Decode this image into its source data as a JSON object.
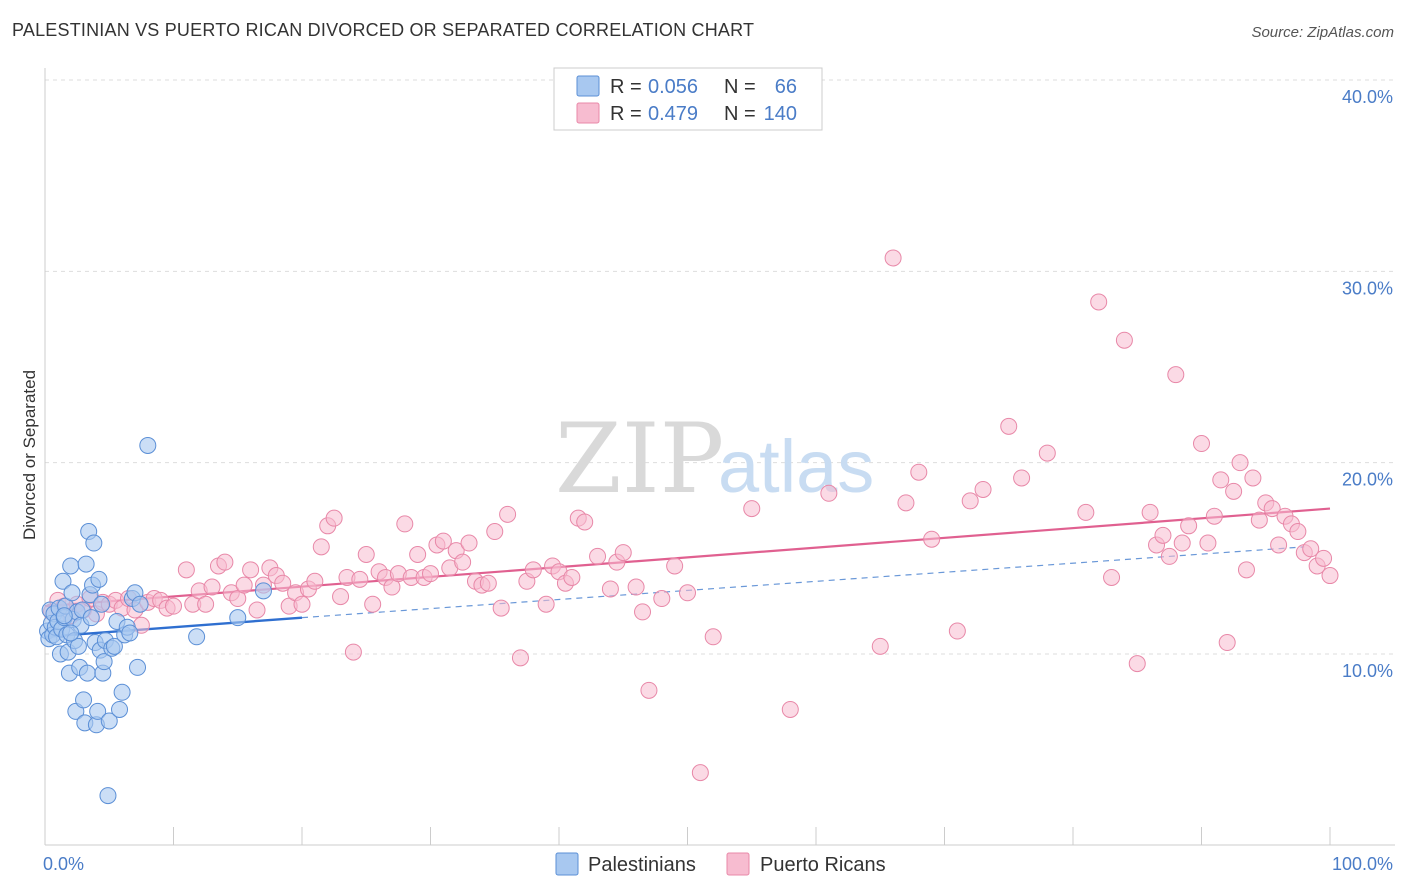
{
  "title": "PALESTINIAN VS PUERTO RICAN DIVORCED OR SEPARATED CORRELATION CHART",
  "source": "Source: ZipAtlas.com",
  "watermark": {
    "zip": "ZIP",
    "atlas": "atlas"
  },
  "colors": {
    "palestinian_fill": "#a8c8f0",
    "palestinian_stroke": "#5b8fd6",
    "palestinian_line": "#2f6fd0",
    "puerto_rican_fill": "#f7bcd0",
    "puerto_rican_stroke": "#e888a8",
    "puerto_rican_line": "#e06090",
    "tick_label": "#4a7cc7",
    "grid": "#dddddd"
  },
  "legend": {
    "r_label": "R =",
    "n_label": "N =",
    "rows": [
      {
        "r": "0.056",
        "n": "66"
      },
      {
        "r": "0.479",
        "n": "140"
      }
    ]
  },
  "bottom_legend": [
    "Palestinians",
    "Puerto Ricans"
  ],
  "chart_data": {
    "type": "scatter",
    "title": "PALESTINIAN VS PUERTO RICAN DIVORCED OR SEPARATED CORRELATION CHART",
    "xlabel": "",
    "ylabel": "Divorced or Separated",
    "xlim": [
      0,
      100
    ],
    "ylim": [
      0,
      41
    ],
    "x_tick_labels": [
      "0.0%",
      "100.0%"
    ],
    "y_ticks": [
      10,
      20,
      30,
      40
    ],
    "y_tick_labels": [
      "10.0%",
      "20.0%",
      "30.0%",
      "40.0%"
    ],
    "grid": true,
    "legend_position": "top-center",
    "series": [
      {
        "name": "Palestinians",
        "r": 0.056,
        "n": 66,
        "trend": {
          "x0": 0,
          "y0": 10.9,
          "x1": 20,
          "y1": 11.9,
          "dashed_to_x": 98,
          "dashed_to_y": 15.6
        },
        "points": [
          [
            0.2,
            11.2
          ],
          [
            0.3,
            10.8
          ],
          [
            0.4,
            12.3
          ],
          [
            0.5,
            11.6
          ],
          [
            0.6,
            11.0
          ],
          [
            0.7,
            12.1
          ],
          [
            0.8,
            11.4
          ],
          [
            0.9,
            10.9
          ],
          [
            1.0,
            11.7
          ],
          [
            1.1,
            12.4
          ],
          [
            1.2,
            10.0
          ],
          [
            1.3,
            11.3
          ],
          [
            1.4,
            13.8
          ],
          [
            1.5,
            11.9
          ],
          [
            1.6,
            12.5
          ],
          [
            1.7,
            11.0
          ],
          [
            1.8,
            10.1
          ],
          [
            1.9,
            9.0
          ],
          [
            2.0,
            14.6
          ],
          [
            2.1,
            13.2
          ],
          [
            2.2,
            11.8
          ],
          [
            2.3,
            10.7
          ],
          [
            2.4,
            7.0
          ],
          [
            2.5,
            12.2
          ],
          [
            2.6,
            10.4
          ],
          [
            2.7,
            9.3
          ],
          [
            2.8,
            11.5
          ],
          [
            2.9,
            12.3
          ],
          [
            3.0,
            7.6
          ],
          [
            3.1,
            6.4
          ],
          [
            3.2,
            14.7
          ],
          [
            3.3,
            9.0
          ],
          [
            3.4,
            16.4
          ],
          [
            3.5,
            13.1
          ],
          [
            3.6,
            11.9
          ],
          [
            3.7,
            13.6
          ],
          [
            3.8,
            15.8
          ],
          [
            3.9,
            10.6
          ],
          [
            4.0,
            6.3
          ],
          [
            4.1,
            7.0
          ],
          [
            4.2,
            13.9
          ],
          [
            4.3,
            10.2
          ],
          [
            4.4,
            12.6
          ],
          [
            4.5,
            9.0
          ],
          [
            4.6,
            9.6
          ],
          [
            4.7,
            10.7
          ],
          [
            5.0,
            6.5
          ],
          [
            5.2,
            10.3
          ],
          [
            5.4,
            10.4
          ],
          [
            5.6,
            11.7
          ],
          [
            5.8,
            7.1
          ],
          [
            6.0,
            8.0
          ],
          [
            6.2,
            11.0
          ],
          [
            6.4,
            11.4
          ],
          [
            6.6,
            11.1
          ],
          [
            6.8,
            12.9
          ],
          [
            7.0,
            13.2
          ],
          [
            7.2,
            9.3
          ],
          [
            7.4,
            12.6
          ],
          [
            8.0,
            20.9
          ],
          [
            11.8,
            10.9
          ],
          [
            15.0,
            11.9
          ],
          [
            17.0,
            13.3
          ],
          [
            4.9,
            2.6
          ],
          [
            1.5,
            12.0
          ],
          [
            2.0,
            11.1
          ]
        ]
      },
      {
        "name": "Puerto Ricans",
        "r": 0.479,
        "n": 140,
        "trend": {
          "x0": 0,
          "y0": 12.5,
          "x1": 100,
          "y1": 17.6
        },
        "points": [
          [
            0.5,
            12.2
          ],
          [
            1.0,
            12.8
          ],
          [
            1.5,
            12.5
          ],
          [
            2.0,
            12.0
          ],
          [
            2.5,
            12.6
          ],
          [
            3.0,
            12.3
          ],
          [
            3.5,
            12.9
          ],
          [
            4.0,
            12.1
          ],
          [
            4.5,
            12.7
          ],
          [
            5.0,
            12.6
          ],
          [
            5.5,
            12.8
          ],
          [
            6.0,
            12.4
          ],
          [
            6.5,
            12.9
          ],
          [
            7.0,
            12.3
          ],
          [
            7.5,
            11.5
          ],
          [
            8.0,
            12.7
          ],
          [
            8.5,
            12.9
          ],
          [
            9.0,
            12.8
          ],
          [
            9.5,
            12.4
          ],
          [
            10.0,
            12.5
          ],
          [
            11.0,
            14.4
          ],
          [
            11.5,
            12.6
          ],
          [
            12.0,
            13.3
          ],
          [
            12.5,
            12.6
          ],
          [
            13.0,
            13.5
          ],
          [
            13.5,
            14.6
          ],
          [
            14.0,
            14.8
          ],
          [
            14.5,
            13.2
          ],
          [
            15.0,
            12.9
          ],
          [
            15.5,
            13.6
          ],
          [
            16.0,
            14.4
          ],
          [
            16.5,
            12.3
          ],
          [
            17.0,
            13.6
          ],
          [
            17.5,
            14.5
          ],
          [
            18.0,
            14.1
          ],
          [
            18.5,
            13.7
          ],
          [
            19.0,
            12.5
          ],
          [
            19.5,
            13.2
          ],
          [
            20.0,
            12.6
          ],
          [
            20.5,
            13.4
          ],
          [
            21.0,
            13.8
          ],
          [
            21.5,
            15.6
          ],
          [
            22.0,
            16.7
          ],
          [
            22.5,
            17.1
          ],
          [
            23.0,
            13.0
          ],
          [
            23.5,
            14.0
          ],
          [
            24.0,
            10.1
          ],
          [
            24.5,
            13.9
          ],
          [
            25.0,
            15.2
          ],
          [
            25.5,
            12.6
          ],
          [
            26.0,
            14.3
          ],
          [
            26.5,
            14.0
          ],
          [
            27.0,
            13.5
          ],
          [
            27.5,
            14.2
          ],
          [
            28.0,
            16.8
          ],
          [
            28.5,
            14.0
          ],
          [
            29.0,
            15.2
          ],
          [
            29.5,
            14.0
          ],
          [
            30.0,
            14.2
          ],
          [
            30.5,
            15.7
          ],
          [
            31.0,
            15.9
          ],
          [
            31.5,
            14.5
          ],
          [
            32.0,
            15.4
          ],
          [
            32.5,
            14.8
          ],
          [
            33.0,
            15.8
          ],
          [
            33.5,
            13.8
          ],
          [
            34.0,
            13.6
          ],
          [
            34.5,
            13.7
          ],
          [
            35.0,
            16.4
          ],
          [
            35.5,
            12.4
          ],
          [
            36.0,
            17.3
          ],
          [
            37.0,
            9.8
          ],
          [
            37.5,
            13.8
          ],
          [
            38.0,
            14.4
          ],
          [
            39.0,
            12.6
          ],
          [
            39.5,
            14.6
          ],
          [
            40.0,
            14.3
          ],
          [
            40.5,
            13.7
          ],
          [
            41.0,
            14.0
          ],
          [
            41.5,
            17.1
          ],
          [
            42.0,
            16.9
          ],
          [
            43.0,
            15.1
          ],
          [
            44.0,
            13.4
          ],
          [
            44.5,
            14.8
          ],
          [
            45.0,
            15.3
          ],
          [
            46.0,
            13.5
          ],
          [
            46.5,
            12.2
          ],
          [
            47.0,
            8.1
          ],
          [
            48.0,
            12.9
          ],
          [
            49.0,
            14.6
          ],
          [
            50.0,
            13.2
          ],
          [
            51.0,
            3.8
          ],
          [
            52.0,
            10.9
          ],
          [
            55.0,
            17.6
          ],
          [
            58.0,
            7.1
          ],
          [
            61.0,
            18.4
          ],
          [
            65.0,
            10.4
          ],
          [
            66.0,
            30.7
          ],
          [
            67.0,
            17.9
          ],
          [
            68.0,
            19.5
          ],
          [
            69.0,
            16.0
          ],
          [
            71.0,
            11.2
          ],
          [
            72.0,
            18.0
          ],
          [
            73.0,
            18.6
          ],
          [
            75.0,
            21.9
          ],
          [
            76.0,
            19.2
          ],
          [
            78.0,
            20.5
          ],
          [
            81.0,
            17.4
          ],
          [
            82.0,
            28.4
          ],
          [
            83.0,
            14.0
          ],
          [
            84.0,
            26.4
          ],
          [
            85.0,
            9.5
          ],
          [
            86.0,
            17.4
          ],
          [
            86.5,
            15.7
          ],
          [
            87.0,
            16.2
          ],
          [
            87.5,
            15.1
          ],
          [
            88.0,
            24.6
          ],
          [
            88.5,
            15.8
          ],
          [
            89.0,
            16.7
          ],
          [
            90.0,
            21.0
          ],
          [
            90.5,
            15.8
          ],
          [
            91.0,
            17.2
          ],
          [
            91.5,
            19.1
          ],
          [
            92.0,
            10.6
          ],
          [
            92.5,
            18.5
          ],
          [
            93.0,
            20.0
          ],
          [
            93.5,
            14.4
          ],
          [
            94.0,
            19.2
          ],
          [
            94.5,
            17.0
          ],
          [
            95.0,
            17.9
          ],
          [
            95.5,
            17.6
          ],
          [
            96.0,
            15.7
          ],
          [
            96.5,
            17.2
          ],
          [
            97.0,
            16.8
          ],
          [
            97.5,
            16.4
          ],
          [
            98.0,
            15.3
          ],
          [
            98.5,
            15.5
          ],
          [
            99.0,
            14.6
          ],
          [
            99.5,
            15.0
          ],
          [
            100.0,
            14.1
          ]
        ]
      }
    ]
  }
}
